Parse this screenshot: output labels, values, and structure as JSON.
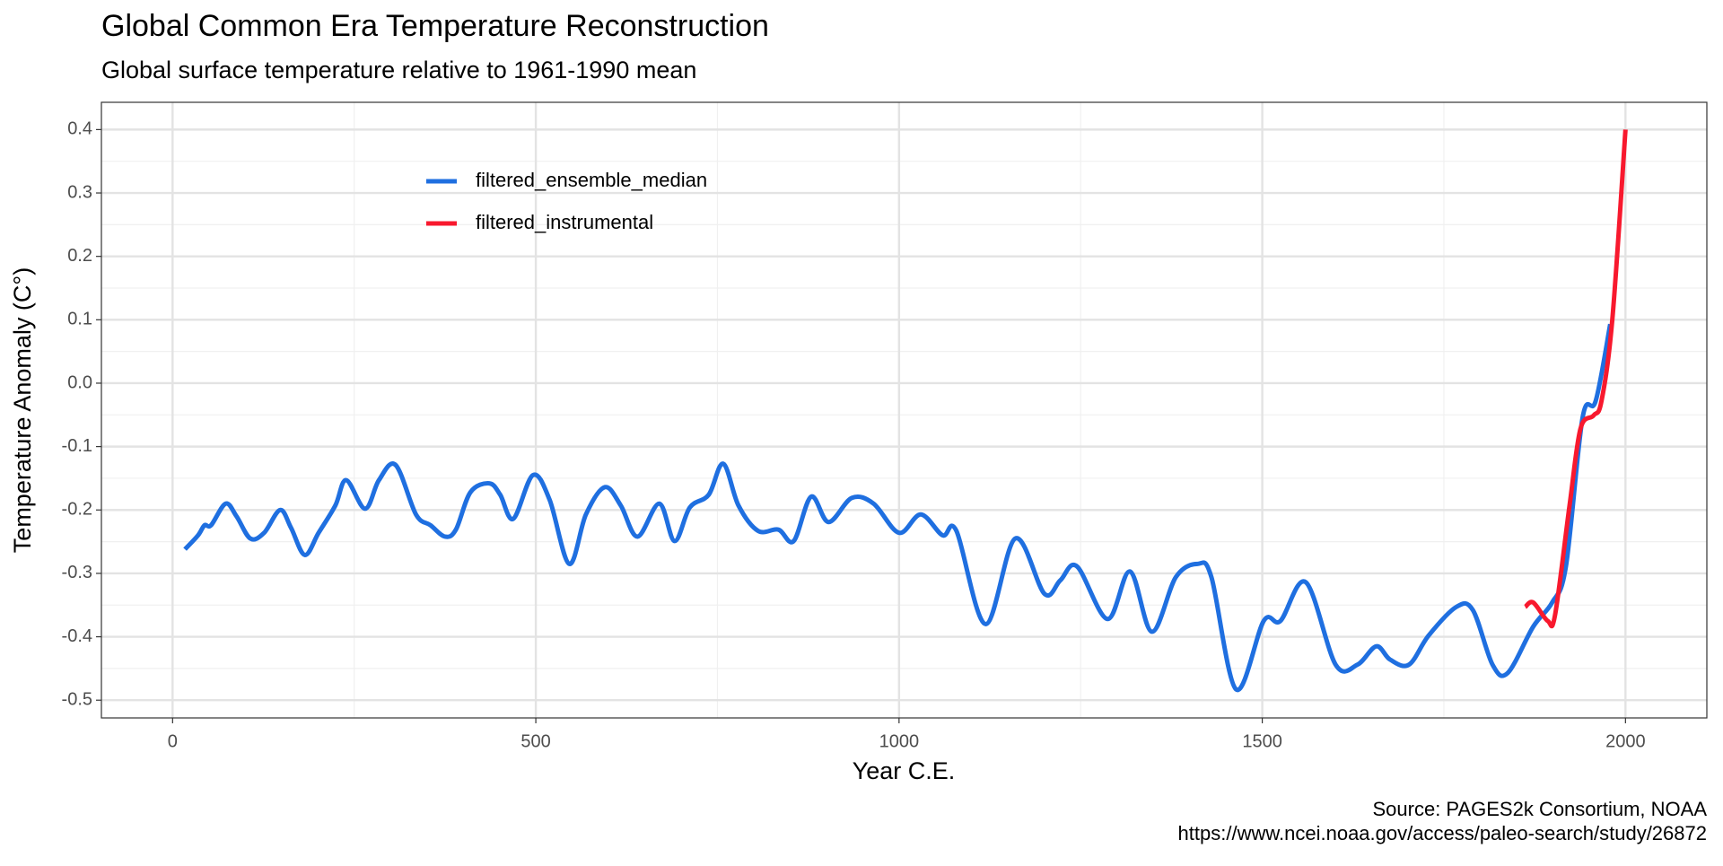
{
  "chart_data": {
    "type": "line",
    "title": "Global Common Era Temperature Reconstruction",
    "subtitle": "Global surface temperature relative to 1961-1990 mean",
    "x_label": "Year C.E.",
    "y_label": "Temperature Anomaly (C°)",
    "caption": [
      "Source: PAGES2k Consortium, NOAA",
      "https://www.ncei.noaa.gov/access/paleo-search/study/26872"
    ],
    "xlim": [
      -98,
      2112
    ],
    "ylim": [
      -0.528,
      0.443
    ],
    "xticks": [
      0,
      500,
      1000,
      1500,
      2000
    ],
    "xminorticks": [
      250,
      750,
      1250,
      1750
    ],
    "yticks": [
      {
        "value": -0.5,
        "label": "-0.5"
      },
      -0.4,
      -0.3,
      -0.2,
      -0.1,
      {
        "value": 0,
        "label": "0.0"
      },
      0.1,
      0.2,
      0.3,
      0.4
    ],
    "yminorticks": [
      -0.45,
      -0.35,
      -0.25,
      -0.15,
      -0.05,
      0.05,
      0.15,
      0.25,
      0.35
    ],
    "grid": true,
    "legend": "top-left",
    "series": [
      {
        "name": "filtered_ensemble_median",
        "color": "#1f6fe0",
        "x": [
          17,
          35,
          44,
          53,
          73,
          88,
          107,
          126,
          148,
          163,
          182,
          201,
          224,
          239,
          265,
          284,
          307,
          335,
          355,
          375,
          390,
          410,
          436,
          451,
          469,
          496,
          519,
          546,
          569,
          595,
          617,
          640,
          670,
          691,
          712,
          738,
          758,
          779,
          806,
          834,
          855,
          879,
          903,
          935,
          965,
          1000,
          1030,
          1060,
          1079,
          1119,
          1160,
          1200,
          1222,
          1245,
          1287,
          1318,
          1348,
          1381,
          1411,
          1430,
          1464,
          1502,
          1525,
          1560,
          1601,
          1631,
          1657,
          1676,
          1702,
          1729,
          1767,
          1790,
          1817,
          1838,
          1873,
          1899,
          1918,
          1941,
          1959,
          1979
        ],
        "values": [
          -0.262,
          -0.24,
          -0.224,
          -0.224,
          -0.19,
          -0.21,
          -0.245,
          -0.236,
          -0.2,
          -0.228,
          -0.271,
          -0.236,
          -0.193,
          -0.153,
          -0.198,
          -0.153,
          -0.129,
          -0.207,
          -0.224,
          -0.242,
          -0.231,
          -0.172,
          -0.158,
          -0.176,
          -0.214,
          -0.145,
          -0.184,
          -0.285,
          -0.207,
          -0.164,
          -0.193,
          -0.242,
          -0.19,
          -0.249,
          -0.196,
          -0.176,
          -0.127,
          -0.193,
          -0.233,
          -0.231,
          -0.249,
          -0.179,
          -0.219,
          -0.181,
          -0.19,
          -0.236,
          -0.207,
          -0.24,
          -0.233,
          -0.38,
          -0.245,
          -0.332,
          -0.311,
          -0.289,
          -0.372,
          -0.297,
          -0.392,
          -0.306,
          -0.285,
          -0.306,
          -0.483,
          -0.375,
          -0.375,
          -0.314,
          -0.444,
          -0.444,
          -0.415,
          -0.436,
          -0.444,
          -0.398,
          -0.353,
          -0.358,
          -0.444,
          -0.457,
          -0.384,
          -0.346,
          -0.289,
          -0.054,
          -0.028,
          0.093
        ]
      },
      {
        "name": "filtered_instrumental",
        "color": "#f8192e",
        "x": [
          1862,
          1873,
          1893,
          1903,
          1923,
          1938,
          1956,
          1967,
          1982,
          2000
        ],
        "values": [
          -0.353,
          -0.346,
          -0.375,
          -0.366,
          -0.193,
          -0.072,
          -0.051,
          -0.028,
          0.102,
          0.4
        ]
      }
    ]
  }
}
